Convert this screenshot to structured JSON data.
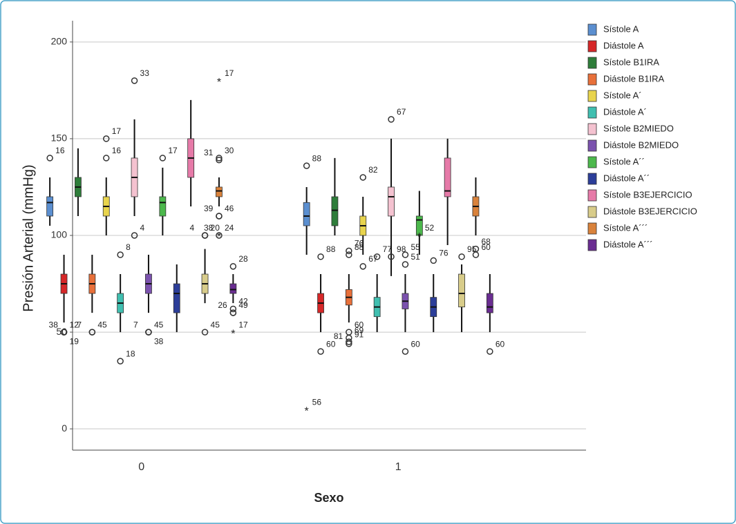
{
  "chart_data": {
    "type": "box",
    "y_label": "Presión Arterial (mmHg)",
    "x_label": "Sexo",
    "categories": [
      "0",
      "1"
    ],
    "ylim": [
      -11,
      211
    ],
    "yticks": [
      0,
      50,
      100,
      150,
      200
    ],
    "grid": true,
    "legend": "right",
    "series": [
      {
        "name": "Sístole A",
        "color": "#5b8fd0",
        "stats": [
          {
            "low": 105,
            "q1": 110,
            "median": 117,
            "q3": 120,
            "high": 130,
            "outliers": [
              {
                "value": 140,
                "label": "16"
              }
            ]
          },
          {
            "low": 90,
            "q1": 105,
            "median": 110,
            "q3": 117,
            "high": 125,
            "outliers": [
              {
                "value": 136,
                "label": "88"
              },
              {
                "value": 10,
                "label": "56",
                "extreme": true
              }
            ]
          }
        ]
      },
      {
        "name": "Diástole A",
        "color": "#d62728",
        "stats": [
          {
            "low": 55,
            "q1": 70,
            "median": 75,
            "q3": 80,
            "high": 90,
            "outliers": [
              {
                "value": 50,
                "label": "12"
              },
              {
                "value": 50,
                "label": "38"
              },
              {
                "value": 50,
                "label": "19"
              }
            ]
          },
          {
            "low": 50,
            "q1": 60,
            "median": 65,
            "q3": 70,
            "high": 80,
            "outliers": [
              {
                "value": 89,
                "label": "88"
              },
              {
                "value": 40,
                "label": "60"
              }
            ]
          }
        ]
      },
      {
        "name": "Sístole B1IRA",
        "color": "#2e7d3a",
        "stats": [
          {
            "low": 110,
            "q1": 120,
            "median": 125,
            "q3": 130,
            "high": 145,
            "outliers": []
          },
          {
            "low": 100,
            "q1": 105,
            "median": 113,
            "q3": 120,
            "high": 140,
            "outliers": []
          }
        ]
      },
      {
        "name": "Diástole B1IRA",
        "color": "#e8703a",
        "stats": [
          {
            "low": 60,
            "q1": 70,
            "median": 75,
            "q3": 80,
            "high": 90,
            "outliers": [
              {
                "value": 50,
                "label": "45"
              },
              {
                "value": 50,
                "label": "7"
              }
            ]
          },
          {
            "low": 55,
            "q1": 64,
            "median": 68,
            "q3": 72,
            "high": 80,
            "outliers": [
              {
                "value": 92,
                "label": "76"
              },
              {
                "value": 90,
                "label": "88"
              },
              {
                "value": 50,
                "label": "60"
              },
              {
                "value": 47,
                "label": "69"
              },
              {
                "value": 45,
                "label": "91"
              },
              {
                "value": 44,
                "label": "81"
              }
            ]
          }
        ]
      },
      {
        "name": "Sístole A´",
        "color": "#e8d44d",
        "stats": [
          {
            "low": 100,
            "q1": 110,
            "median": 115,
            "q3": 120,
            "high": 130,
            "outliers": [
              {
                "value": 150,
                "label": "17"
              },
              {
                "value": 140,
                "label": "16"
              }
            ]
          },
          {
            "low": 90,
            "q1": 100,
            "median": 105,
            "q3": 110,
            "high": 120,
            "outliers": [
              {
                "value": 130,
                "label": "82"
              },
              {
                "value": 84,
                "label": "67"
              }
            ]
          }
        ]
      },
      {
        "name": "Diástole A´",
        "color": "#40bfb0",
        "stats": [
          {
            "low": 50,
            "q1": 60,
            "median": 65,
            "q3": 70,
            "high": 80,
            "outliers": [
              {
                "value": 90,
                "label": "8"
              },
              {
                "value": 35,
                "label": "18"
              }
            ]
          },
          {
            "low": 50,
            "q1": 58,
            "median": 63,
            "q3": 68,
            "high": 80,
            "outliers": [
              {
                "value": 89,
                "label": "77"
              }
            ]
          }
        ]
      },
      {
        "name": "Sístole B2MIEDO",
        "color": "#f4c2d0",
        "stats": [
          {
            "low": 110,
            "q1": 120,
            "median": 130,
            "q3": 140,
            "high": 160,
            "outliers": [
              {
                "value": 180,
                "label": "33"
              },
              {
                "value": 100,
                "label": "4"
              }
            ]
          },
          {
            "low": 79,
            "q1": 110,
            "median": 120,
            "q3": 125,
            "high": 150,
            "outliers": [
              {
                "value": 160,
                "label": "67"
              },
              {
                "value": 89,
                "label": "98"
              }
            ]
          }
        ]
      },
      {
        "name": "Diástole B2MIEDO",
        "color": "#7b52ae",
        "stats": [
          {
            "low": 60,
            "q1": 70,
            "median": 75,
            "q3": 80,
            "high": 90,
            "outliers": [
              {
                "value": 50,
                "label": "45"
              },
              {
                "value": 50,
                "label": "7"
              },
              {
                "value": 50,
                "label": "38"
              }
            ]
          },
          {
            "low": 50,
            "q1": 62,
            "median": 66,
            "q3": 70,
            "high": 80,
            "outliers": [
              {
                "value": 90,
                "label": "55"
              },
              {
                "value": 85,
                "label": "51"
              },
              {
                "value": 40,
                "label": "60"
              }
            ]
          }
        ]
      },
      {
        "name": "Sístole A´´",
        "color": "#4cb84c",
        "stats": [
          {
            "low": 100,
            "q1": 110,
            "median": 117,
            "q3": 120,
            "high": 135,
            "outliers": [
              {
                "value": 140,
                "label": "17"
              }
            ]
          },
          {
            "low": 90,
            "q1": 100,
            "median": 108,
            "q3": 110,
            "high": 123,
            "outliers": [
              {
                "value": 100,
                "label": "52",
                "extreme": true
              }
            ]
          }
        ]
      },
      {
        "name": "Diástole A´´",
        "color": "#2c3e99",
        "stats": [
          {
            "low": 50,
            "q1": 60,
            "median": 70,
            "q3": 75,
            "high": 85,
            "outliers": []
          },
          {
            "low": 50,
            "q1": 58,
            "median": 63,
            "q3": 68,
            "high": 80,
            "outliers": [
              {
                "value": 87,
                "label": "76"
              }
            ]
          }
        ]
      },
      {
        "name": "Sístole B3EJERCICIO",
        "color": "#e67aa8",
        "stats": [
          {
            "low": 115,
            "q1": 130,
            "median": 140,
            "q3": 150,
            "high": 170,
            "outliers": []
          },
          {
            "low": 95,
            "q1": 120,
            "median": 123,
            "q3": 140,
            "high": 150,
            "outliers": []
          }
        ]
      },
      {
        "name": "Diástole B3EJERCICIO",
        "color": "#d8cc8a",
        "stats": [
          {
            "low": 65,
            "q1": 70,
            "median": 75,
            "q3": 80,
            "high": 93,
            "outliers": [
              {
                "value": 100,
                "label": "20"
              },
              {
                "value": 100,
                "label": "4"
              },
              {
                "value": 50,
                "label": "45"
              }
            ]
          },
          {
            "low": 50,
            "q1": 63,
            "median": 70,
            "q3": 80,
            "high": 85,
            "outliers": [
              {
                "value": 89,
                "label": "95"
              }
            ]
          }
        ]
      },
      {
        "name": "Sístole A´´´",
        "color": "#d9823b",
        "stats": [
          {
            "low": 115,
            "q1": 120,
            "median": 123,
            "q3": 125,
            "high": 130,
            "outliers": [
              {
                "value": 180,
                "label": "17",
                "extreme": true
              },
              {
                "value": 140,
                "label": "30"
              },
              {
                "value": 139,
                "label": "31"
              },
              {
                "value": 110,
                "label": "46"
              },
              {
                "value": 110,
                "label": "39"
              },
              {
                "value": 100,
                "label": "24"
              },
              {
                "value": 100,
                "label": "38",
                "extreme": true
              }
            ]
          },
          {
            "low": 100,
            "q1": 110,
            "median": 115,
            "q3": 120,
            "high": 130,
            "outliers": [
              {
                "value": 93,
                "label": "68"
              },
              {
                "value": 90,
                "label": "60"
              }
            ]
          }
        ]
      },
      {
        "name": "Diástole A´´´",
        "color": "#6a2d91",
        "stats": [
          {
            "low": 65,
            "q1": 70,
            "median": 72,
            "q3": 75,
            "high": 80,
            "outliers": [
              {
                "value": 84,
                "label": "28"
              },
              {
                "value": 62,
                "label": "42"
              },
              {
                "value": 60,
                "label": "49"
              },
              {
                "value": 60,
                "label": "26"
              },
              {
                "value": 50,
                "label": "17",
                "extreme": true
              }
            ]
          },
          {
            "low": 50,
            "q1": 60,
            "median": 63,
            "q3": 70,
            "high": 80,
            "outliers": [
              {
                "value": 40,
                "label": "60"
              }
            ]
          }
        ]
      }
    ]
  }
}
